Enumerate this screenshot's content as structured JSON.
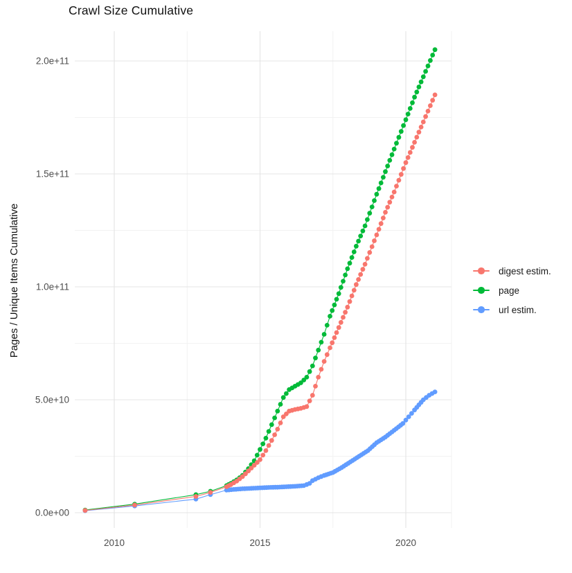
{
  "figure": {
    "title": "Crawl Size Cumulative",
    "background_color": "#FFFFFF",
    "gridline_major_color": "#E4E4E4",
    "gridline_minor_color": "#F2F2F2",
    "axis_text_color": "#4D4D4D"
  },
  "chart_data": {
    "type": "line",
    "title": "Crawl Size Cumulative",
    "xlabel": "",
    "ylabel": "Pages / Unique Items Cumulative",
    "xlim": [
      2008.65,
      2021.8
    ],
    "ylim": [
      -6500000000.0,
      213000000000.0
    ],
    "grid": "on",
    "legend_position": "right",
    "x_ticks": {
      "major": [
        {
          "value": 2010,
          "label": "2010"
        },
        {
          "value": 2015,
          "label": "2015"
        },
        {
          "value": 2020,
          "label": "2020"
        }
      ],
      "minor": [
        2012.5,
        2017.5
      ]
    },
    "y_ticks": {
      "major": [
        {
          "value": 0,
          "label": "0.0e+00"
        },
        {
          "value": 50000000000.0,
          "label": "5.0e+10"
        },
        {
          "value": 100000000000.0,
          "label": "1.0e+11"
        },
        {
          "value": 150000000000.0,
          "label": "1.5e+11"
        },
        {
          "value": 200000000000.0,
          "label": "2.0e+11"
        }
      ],
      "minor": [
        25000000000.0,
        75000000000.0,
        125000000000.0,
        175000000000.0
      ]
    },
    "series": [
      {
        "name": "digest estim.",
        "color": "#F8766D",
        "points": [
          [
            2009.0,
            1000000000.0
          ],
          [
            2010.7,
            3400000000.0
          ],
          [
            2012.8,
            7200000000.0
          ],
          [
            2013.3,
            9000000000.0
          ],
          [
            2013.85,
            11500000000.0
          ],
          [
            2014.0,
            12500000000.0
          ],
          [
            2014.2,
            14000000000.0
          ],
          [
            2014.4,
            16000000000.0
          ],
          [
            2014.6,
            18500000000.0
          ],
          [
            2014.8,
            21000000000.0
          ],
          [
            2015.0,
            23500000000.0
          ],
          [
            2015.2,
            27500000000.0
          ],
          [
            2015.4,
            32000000000.0
          ],
          [
            2015.6,
            37000000000.0
          ],
          [
            2015.8,
            42500000000.0
          ],
          [
            2016.0,
            45000000000.0
          ],
          [
            2016.2,
            45700000000.0
          ],
          [
            2016.4,
            46200000000.0
          ],
          [
            2016.6,
            47000000000.0
          ],
          [
            2016.8,
            52000000000.0
          ],
          [
            2017.0,
            60000000000.0
          ],
          [
            2017.2,
            67000000000.0
          ],
          [
            2017.4,
            73000000000.0
          ],
          [
            2017.7,
            82000000000.0
          ],
          [
            2018.0,
            91000000000.0
          ],
          [
            2018.3,
            101000000000.0
          ],
          [
            2018.6,
            110000000000.0
          ],
          [
            2019.0,
            123000000000.0
          ],
          [
            2019.3,
            133000000000.0
          ],
          [
            2019.6,
            142000000000.0
          ],
          [
            2020.0,
            155000000000.0
          ],
          [
            2020.3,
            164000000000.0
          ],
          [
            2020.6,
            173000000000.0
          ],
          [
            2021.0,
            185000000000.0
          ]
        ]
      },
      {
        "name": "page",
        "color": "#00BA38",
        "points": [
          [
            2009.0,
            1200000000.0
          ],
          [
            2010.7,
            3800000000.0
          ],
          [
            2012.8,
            8000000000.0
          ],
          [
            2013.3,
            9500000000.0
          ],
          [
            2013.85,
            12000000000.0
          ],
          [
            2014.0,
            13000000000.0
          ],
          [
            2014.2,
            14500000000.0
          ],
          [
            2014.4,
            16500000000.0
          ],
          [
            2014.6,
            19500000000.0
          ],
          [
            2014.8,
            23000000000.0
          ],
          [
            2015.0,
            28000000000.0
          ],
          [
            2015.2,
            33000000000.0
          ],
          [
            2015.4,
            39000000000.0
          ],
          [
            2015.6,
            45000000000.0
          ],
          [
            2015.8,
            51000000000.0
          ],
          [
            2016.0,
            54500000000.0
          ],
          [
            2016.2,
            56000000000.0
          ],
          [
            2016.4,
            57500000000.0
          ],
          [
            2016.6,
            60000000000.0
          ],
          [
            2016.8,
            65000000000.0
          ],
          [
            2017.0,
            72000000000.0
          ],
          [
            2017.2,
            79000000000.0
          ],
          [
            2017.4,
            87000000000.0
          ],
          [
            2017.7,
            97000000000.0
          ],
          [
            2018.0,
            108000000000.0
          ],
          [
            2018.3,
            118000000000.0
          ],
          [
            2018.6,
            127000000000.0
          ],
          [
            2019.0,
            141000000000.0
          ],
          [
            2019.3,
            151000000000.0
          ],
          [
            2019.6,
            161000000000.0
          ],
          [
            2020.0,
            174000000000.0
          ],
          [
            2020.3,
            184000000000.0
          ],
          [
            2020.6,
            193000000000.0
          ],
          [
            2021.0,
            205000000000.0
          ]
        ]
      },
      {
        "name": "url estim.",
        "color": "#619CFF",
        "points": [
          [
            2009.0,
            900000000.0
          ],
          [
            2010.7,
            3000000000.0
          ],
          [
            2012.8,
            6000000000.0
          ],
          [
            2013.3,
            8000000000.0
          ],
          [
            2013.85,
            10000000000.0
          ],
          [
            2014.1,
            10300000000.0
          ],
          [
            2014.4,
            10600000000.0
          ],
          [
            2014.7,
            10800000000.0
          ],
          [
            2015.0,
            11000000000.0
          ],
          [
            2015.3,
            11200000000.0
          ],
          [
            2015.6,
            11300000000.0
          ],
          [
            2015.9,
            11500000000.0
          ],
          [
            2016.2,
            11700000000.0
          ],
          [
            2016.5,
            12000000000.0
          ],
          [
            2016.7,
            13000000000.0
          ],
          [
            2016.8,
            14200000000.0
          ],
          [
            2017.0,
            15500000000.0
          ],
          [
            2017.2,
            16500000000.0
          ],
          [
            2017.5,
            17800000000.0
          ],
          [
            2017.8,
            20000000000.0
          ],
          [
            2018.1,
            22500000000.0
          ],
          [
            2018.4,
            25000000000.0
          ],
          [
            2018.7,
            27500000000.0
          ],
          [
            2019.0,
            31000000000.0
          ],
          [
            2019.3,
            33500000000.0
          ],
          [
            2019.6,
            36500000000.0
          ],
          [
            2019.9,
            39500000000.0
          ],
          [
            2020.1,
            42500000000.0
          ],
          [
            2020.3,
            45500000000.0
          ],
          [
            2020.6,
            50000000000.0
          ],
          [
            2020.8,
            52000000000.0
          ],
          [
            2021.0,
            53500000000.0
          ]
        ]
      }
    ]
  }
}
